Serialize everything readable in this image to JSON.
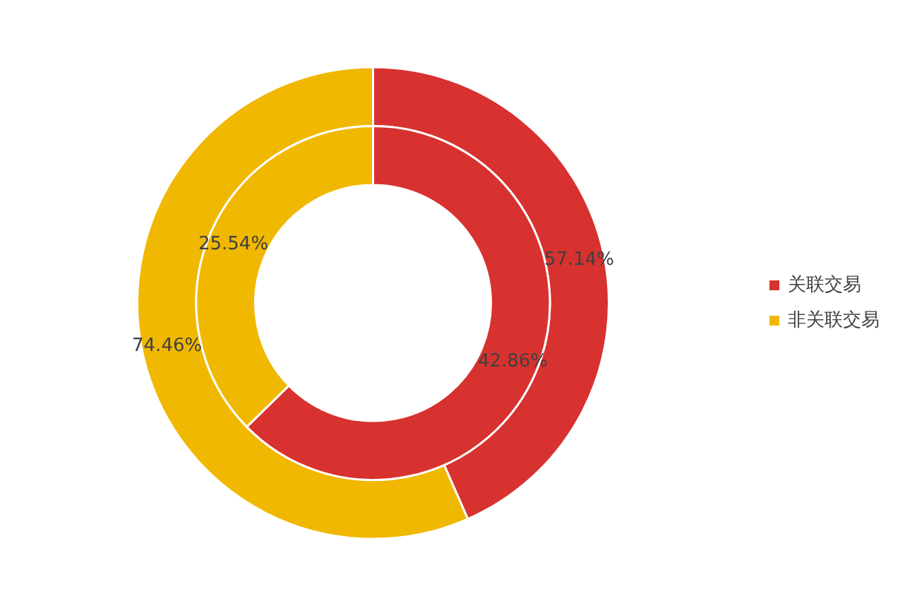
{
  "chart_data": {
    "type": "donut",
    "categories": [
      "关联交易",
      "非关联交易"
    ],
    "colors": [
      "#d7322f",
      "#f0b800"
    ],
    "legend": "right",
    "series": [
      {
        "values": [
          57.14,
          74.46
        ],
        "value_labels": [
          "57.14%",
          "74.46%"
        ]
      },
      {
        "values": [
          42.86,
          25.54
        ],
        "value_labels": [
          "42.86%",
          "25.54%"
        ]
      }
    ]
  }
}
